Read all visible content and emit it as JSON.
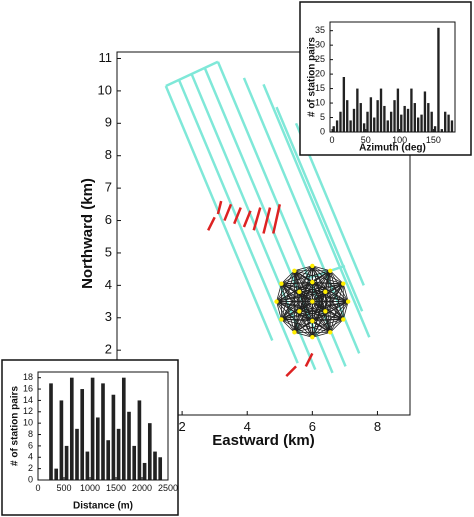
{
  "chart_data": [
    {
      "type": "map",
      "xlabel": "Eastward (km)",
      "ylabel": "Northward (km)",
      "xlim": [
        0,
        9
      ],
      "ylim": [
        0,
        11.2
      ],
      "xticks": [
        2,
        4,
        6,
        8
      ],
      "yticks": [
        2,
        3,
        4,
        5,
        6,
        7,
        8,
        9,
        10,
        11
      ],
      "lines": [
        {
          "color": "#7fe8d8",
          "x": [
            1.5,
            3.1
          ],
          "y": [
            10.15,
            10.9
          ]
        },
        {
          "color": "#7fe8d8",
          "x": [
            1.5,
            4.77
          ],
          "y": [
            10.15,
            2.3
          ]
        },
        {
          "color": "#7fe8d8",
          "x": [
            1.9,
            5.55
          ],
          "y": [
            10.35,
            1.6
          ]
        },
        {
          "color": "#7fe8d8",
          "x": [
            2.3,
            6.09
          ],
          "y": [
            10.5,
            1.4
          ]
        },
        {
          "color": "#7fe8d8",
          "x": [
            2.7,
            6.62
          ],
          "y": [
            10.7,
            1.3
          ]
        },
        {
          "color": "#7fe8d8",
          "x": [
            3.1,
            7.02
          ],
          "y": [
            10.9,
            1.5
          ]
        },
        {
          "color": "#7fe8d8",
          "x": [
            3.9,
            7.44
          ],
          "y": [
            10.4,
            1.9
          ]
        },
        {
          "color": "#7fe8d8",
          "x": [
            4.5,
            7.75
          ],
          "y": [
            10.2,
            2.4
          ]
        },
        {
          "color": "#7fe8d8",
          "x": [
            4.9,
            7.53
          ],
          "y": [
            9.5,
            3.2
          ]
        },
        {
          "color": "#7fe8d8",
          "x": [
            5.5,
            7.58
          ],
          "y": [
            9.0,
            4.0
          ]
        },
        {
          "color": "#7fe8d8",
          "x": [
            5.8,
            7.0
          ],
          "y": [
            4.2,
            4.6
          ]
        },
        {
          "color": "#dd2222",
          "x": [
            2.8,
            3.0
          ],
          "y": [
            5.7,
            6.1
          ]
        },
        {
          "color": "#dd2222",
          "x": [
            3.1,
            3.2
          ],
          "y": [
            6.2,
            6.6
          ]
        },
        {
          "color": "#dd2222",
          "x": [
            3.3,
            3.5
          ],
          "y": [
            6.0,
            6.5
          ]
        },
        {
          "color": "#dd2222",
          "x": [
            3.6,
            3.8
          ],
          "y": [
            5.9,
            6.4
          ]
        },
        {
          "color": "#dd2222",
          "x": [
            3.9,
            4.1
          ],
          "y": [
            5.8,
            6.3
          ]
        },
        {
          "color": "#dd2222",
          "x": [
            4.2,
            4.4
          ],
          "y": [
            5.7,
            6.4
          ]
        },
        {
          "color": "#dd2222",
          "x": [
            4.5,
            4.7
          ],
          "y": [
            5.6,
            6.4
          ]
        },
        {
          "color": "#dd2222",
          "x": [
            4.8,
            5.0
          ],
          "y": [
            5.6,
            6.5
          ]
        },
        {
          "color": "#dd2222",
          "x": [
            5.2,
            5.5
          ],
          "y": [
            1.2,
            1.5
          ]
        },
        {
          "color": "#dd2222",
          "x": [
            5.8,
            6.0
          ],
          "y": [
            1.5,
            1.9
          ]
        }
      ],
      "stations": {
        "color": "#ffee00",
        "link_color": "#222222",
        "x": [
          7.1,
          6.95,
          6.55,
          6.0,
          5.45,
          5.05,
          4.9,
          5.05,
          5.45,
          6.0,
          6.55,
          6.95,
          6.0,
          5.6,
          6.4,
          5.6,
          6.4,
          6.0,
          6.0
        ],
        "y": [
          3.5,
          4.05,
          4.45,
          4.6,
          4.45,
          4.05,
          3.5,
          2.95,
          2.55,
          2.4,
          2.55,
          2.95,
          3.5,
          3.8,
          3.8,
          3.2,
          3.2,
          4.1,
          2.9
        ]
      }
    },
    {
      "type": "histogram",
      "xlabel": "Azimuth (deg)",
      "ylabel": "# of station pairs",
      "color": "#222222",
      "xlim": [
        -3,
        182
      ],
      "ylim": [
        0,
        38
      ],
      "xticks": [
        0,
        50,
        100,
        150
      ],
      "yticks": [
        0,
        5,
        10,
        15,
        20,
        25,
        30,
        35
      ],
      "bins": [
        0,
        5,
        10,
        15,
        20,
        25,
        30,
        35,
        40,
        45,
        50,
        55,
        60,
        65,
        70,
        75,
        80,
        85,
        90,
        95,
        100,
        105,
        110,
        115,
        120,
        125,
        130,
        135,
        140,
        145,
        150,
        155,
        160,
        165,
        170,
        175,
        180
      ],
      "values": [
        2,
        4,
        7,
        19,
        11,
        4,
        8,
        15,
        10,
        3,
        7,
        12,
        5,
        11,
        15,
        9,
        4,
        7,
        11,
        15,
        6,
        9,
        8,
        15,
        10,
        5,
        6,
        14,
        10,
        7,
        2,
        36,
        1,
        7,
        6,
        4
      ]
    },
    {
      "type": "histogram",
      "xlabel": "Distance (m)",
      "ylabel": "# of station pairs",
      "color": "#222222",
      "xlim": [
        0,
        2500
      ],
      "ylim": [
        0,
        19
      ],
      "xticks": [
        0,
        500,
        1000,
        1500,
        2000,
        2500
      ],
      "yticks": [
        0,
        2,
        4,
        6,
        8,
        10,
        12,
        14,
        16,
        18
      ],
      "bins": [
        200,
        300,
        400,
        500,
        600,
        700,
        800,
        900,
        1000,
        1100,
        1200,
        1300,
        1400,
        1500,
        1600,
        1700,
        1800,
        1900,
        2000,
        2100,
        2200,
        2300,
        2400
      ],
      "values": [
        17,
        2,
        14,
        6,
        18,
        9,
        16,
        5,
        18,
        11,
        17,
        7,
        15,
        9,
        18,
        12,
        6,
        14,
        3,
        10,
        5,
        4
      ]
    }
  ]
}
